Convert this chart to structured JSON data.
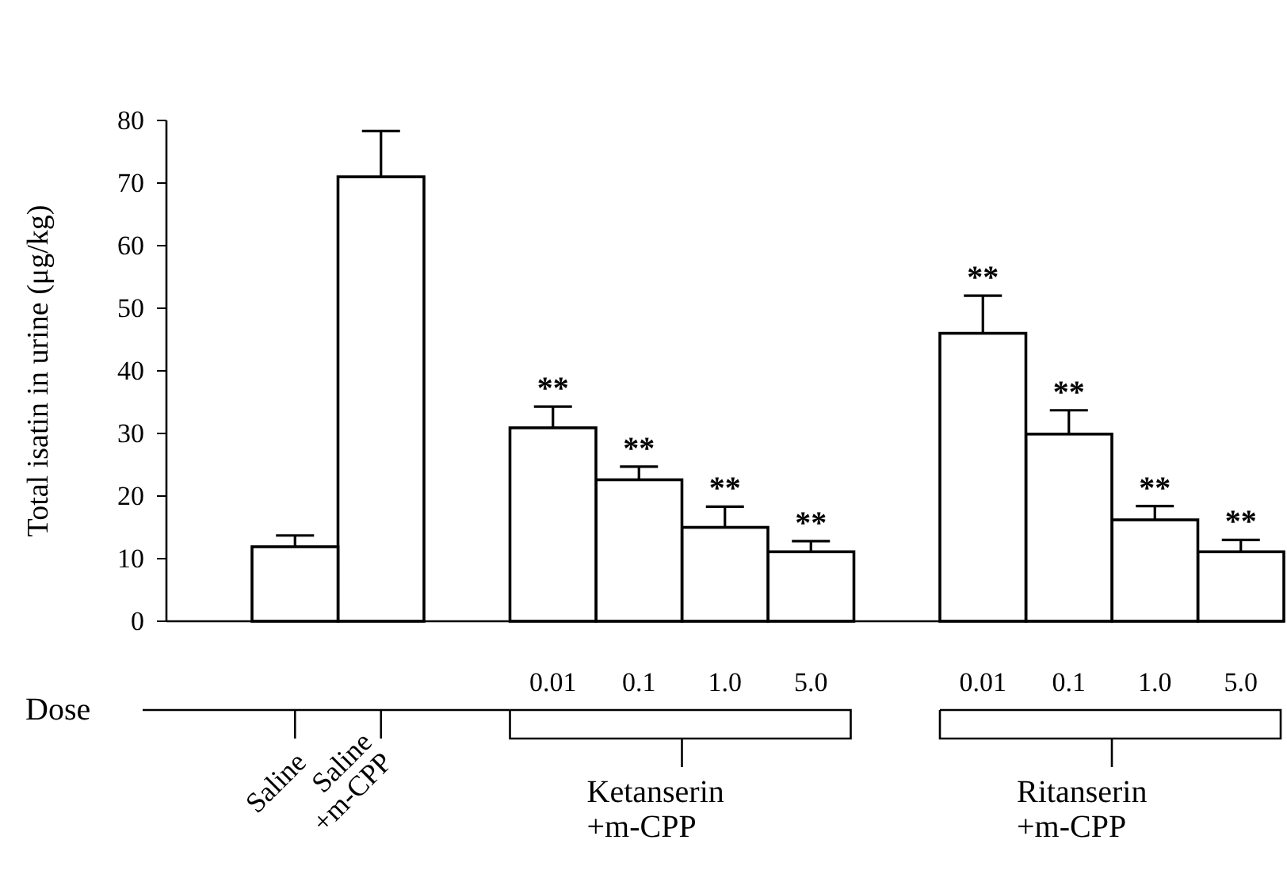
{
  "chart_data": {
    "type": "bar",
    "ylabel": "Total isatin in urine (μg/kg)",
    "categories": [
      "Saline",
      "Saline +m-CPP",
      null,
      null,
      null,
      null,
      null,
      null,
      null,
      null,
      null,
      null
    ],
    "values": [
      11.9,
      71,
      null,
      30.9,
      22.6,
      15.0,
      11.1,
      null,
      46,
      29.9,
      16.2,
      11.1
    ],
    "errors": [
      [
        11.9,
        13.7
      ],
      [
        71,
        78.3
      ],
      null,
      [
        30.9,
        34.3
      ],
      [
        22.6,
        24.7
      ],
      [
        15.0,
        18.3
      ],
      [
        11.1,
        12.8
      ],
      null,
      [
        46,
        52.0
      ],
      [
        29.9,
        33.7
      ],
      [
        16.2,
        18.4
      ],
      [
        11.1,
        13.0
      ]
    ],
    "value_labels": [
      null,
      null,
      null,
      "**",
      "**",
      "**",
      "**",
      null,
      "**",
      "**",
      "**",
      "**"
    ],
    "color": "#ffffff",
    "ylim": [
      0,
      80
    ],
    "yticks": [
      0,
      10,
      20,
      30,
      40,
      50,
      60,
      70,
      80
    ],
    "annotations": [
      "Dose",
      "Ketanserin +m-CPP",
      "Ritanserin +m-CPP",
      "0.01",
      "0.1",
      "1.0",
      "5.0",
      "0.01",
      "0.1",
      "1.0",
      "5.0"
    ]
  }
}
